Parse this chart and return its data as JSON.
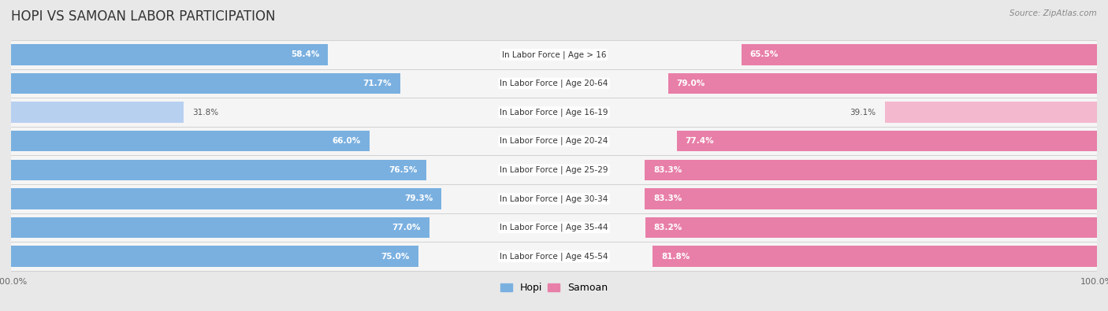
{
  "title": "HOPI VS SAMOAN LABOR PARTICIPATION",
  "source": "Source: ZipAtlas.com",
  "categories": [
    "In Labor Force | Age > 16",
    "In Labor Force | Age 20-64",
    "In Labor Force | Age 16-19",
    "In Labor Force | Age 20-24",
    "In Labor Force | Age 25-29",
    "In Labor Force | Age 30-34",
    "In Labor Force | Age 35-44",
    "In Labor Force | Age 45-54"
  ],
  "hopi_values": [
    58.4,
    71.7,
    31.8,
    66.0,
    76.5,
    79.3,
    77.0,
    75.0
  ],
  "samoan_values": [
    65.5,
    79.0,
    39.1,
    77.4,
    83.3,
    83.3,
    83.2,
    81.8
  ],
  "hopi_color": "#7ab0e0",
  "hopi_color_light": "#b8d0f0",
  "samoan_color": "#e87fa8",
  "samoan_color_light": "#f4b8ce",
  "max_val": 100.0,
  "bg_color": "#e8e8e8",
  "row_bg_color": "#f5f5f5",
  "bar_height": 0.72,
  "title_fontsize": 12,
  "label_fontsize": 7.5,
  "value_fontsize": 7.5,
  "legend_fontsize": 9,
  "axis_label_fontsize": 8,
  "light_rows": [
    2
  ]
}
